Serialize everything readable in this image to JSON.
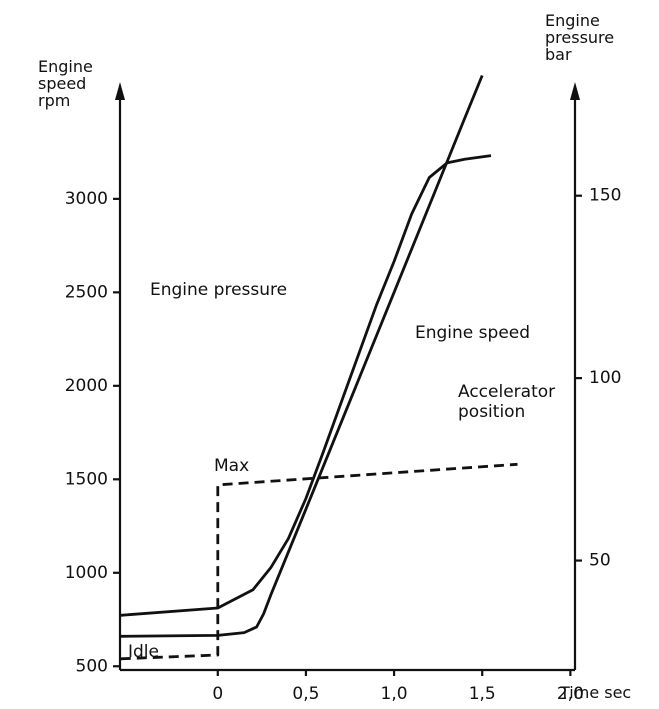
{
  "chart_data": {
    "type": "line",
    "y_label": [
      "Engine",
      "speed",
      "rpm"
    ],
    "y2_label": [
      "Engine",
      "pressure",
      "bar"
    ],
    "x_label": "Time sec",
    "annotations": [
      "Max",
      "Idle"
    ],
    "xlim": [
      -0.6,
      2.1
    ],
    "xticks": [
      0,
      {
        "value": 0.5,
        "label": "0,5"
      },
      {
        "value": 1.0,
        "label": "1,0"
      },
      {
        "value": 1.5,
        "label": "1,5"
      },
      {
        "value": 2.0,
        "label": "2,0"
      }
    ],
    "ylim": [
      480,
      3700
    ],
    "yticks": [
      500,
      1000,
      1500,
      2000,
      2500,
      3000
    ],
    "y2lim": [
      20,
      185
    ],
    "y2ticks": [
      50,
      100,
      150
    ],
    "series": [
      {
        "name": "Engine pressure",
        "color": "#111111",
        "axis": "y2",
        "style": "solid",
        "x": [
          -0.55,
          0,
          0.2,
          0.3,
          0.4,
          0.5,
          0.6,
          0.75,
          0.9,
          1.0,
          1.1,
          1.2,
          1.3,
          1.4,
          1.55
        ],
        "values": [
          35,
          37,
          42,
          48,
          56,
          67,
          80,
          100,
          120,
          132,
          145,
          155,
          159,
          160,
          161
        ]
      },
      {
        "name": "Engine speed",
        "color": "#111111",
        "axis": "y",
        "style": "solid",
        "x": [
          -0.55,
          0,
          0.15,
          0.22,
          0.26,
          0.3,
          0.4,
          0.5,
          0.75,
          1.0,
          1.25,
          1.4,
          1.5
        ],
        "values": [
          660,
          665,
          680,
          710,
          780,
          880,
          1110,
          1340,
          1920,
          2500,
          3080,
          3430,
          3660
        ]
      },
      {
        "name": "Accelerator position",
        "color": "#111111",
        "axis": "y",
        "style": "dashed",
        "x": [
          -0.55,
          0,
          0,
          1.7
        ],
        "values": [
          540,
          560,
          1470,
          1580
        ]
      }
    ]
  }
}
